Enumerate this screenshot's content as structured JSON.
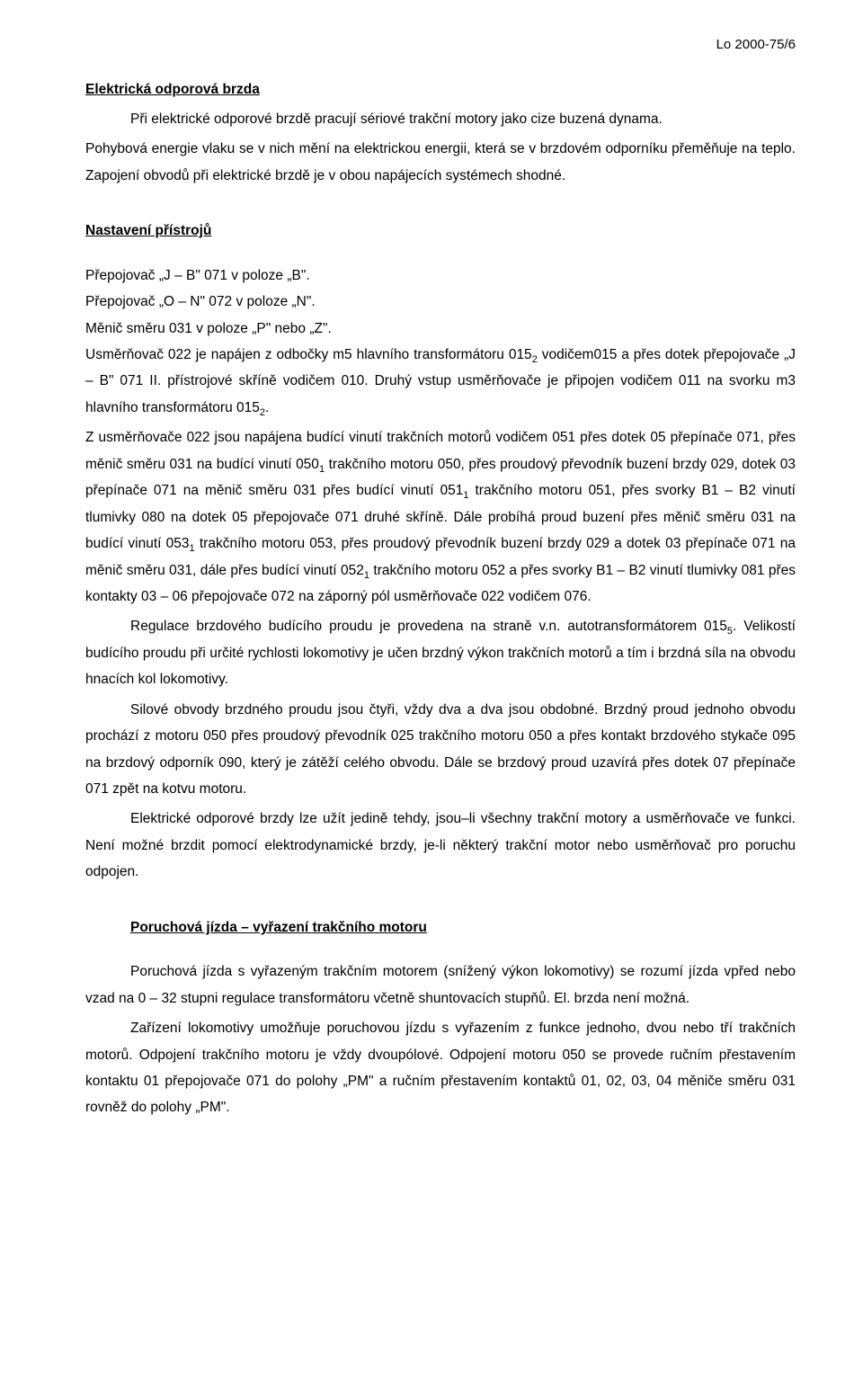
{
  "header": {
    "doc_ref": "Lo 2000-75/6"
  },
  "section1": {
    "title": "Elektrická odporová brzda",
    "p1": "Při elektrické odporové brzdě pracují sériové trakční motory jako cize buzená dynama.",
    "p2": "Pohybová energie vlaku se v nich mění na elektrickou energii, která se v brzdovém odporníku přeměňuje na teplo. Zapojení obvodů při elektrické brzdě je v obou napájecích systémech shodné."
  },
  "section2": {
    "title": "Nastavení přístrojů",
    "l1": "Přepojovač „J – B\" 071 v poloze „B\".",
    "l2": "Přepojovač „O – N\" 072 v poloze „N\".",
    "l3": "Měnič směru 031 v poloze „P\" nebo „Z\".",
    "p1a": "Usměrňovač 022 je napájen z odbočky m5 hlavního transformátoru 015",
    "p1sub1": "2",
    "p1b": " vodičem015 a přes dotek přepojovače „J – B\" 071 II. přístrojové skříně vodičem 010. Druhý vstup usměrňovače je připojen vodičem 011 na svorku m3 hlavního transformátoru 015",
    "p1sub2": "2",
    "p1c": ".",
    "p2a": "Z usměrňovače 022 jsou napájena budící vinutí trakčních motorů vodičem 051 přes dotek 05 přepínače 071, přes měnič směru 031 na budící vinutí 050",
    "p2sub1": "1",
    "p2b": " trakčního motoru 050, přes proudový převodník buzení brzdy 029, dotek 03 přepínače 071 na měnič směru 031 přes budící vinutí 051",
    "p2sub2": "1",
    "p2c": " trakčního motoru 051, přes svorky B1 – B2 vinutí tlumivky 080 na dotek 05 přepojovače 071 druhé skříně. Dále probíhá proud buzení přes měnič směru 031 na budící vinutí 053",
    "p2sub3": "1",
    "p2d": " trakčního motoru 053, přes proudový převodník buzení brzdy 029 a dotek 03 přepínače 071 na měnič směru 031, dále přes budící vinutí 052",
    "p2sub4": "1",
    "p2e": " trakčního motoru 052 a  přes  svorky B1 – B2  vinutí  tlumivky  081  přes  kontakty  03 – 06 přepojovače 072 na záporný pól usměrňovače 022 vodičem 076.",
    "p3a": "Regulace brzdového budícího proudu je provedena na straně v.n. autotransformátorem 015",
    "p3sub": "5",
    "p3b": ". Velikostí budícího proudu při určité rychlosti lokomotivy je učen brzdný výkon trakčních motorů a tím i brzdná  síla na obvodu hnacích kol lokomotivy.",
    "p4": "Silové obvody brzdného proudu jsou čtyři, vždy dva a dva jsou obdobné. Brzdný proud jednoho obvodu prochází  z motoru 050 přes proudový převodník 025 trakčního motoru 050 a přes kontakt brzdového stykače 095 na brzdový odporník 090, který je zátěží celého obvodu. Dále se brzdový proud uzavírá přes dotek 07 přepínače 071 zpět na kotvu motoru.",
    "p5": "Elektrické odporové brzdy lze užít jedině tehdy, jsou–li všechny trakční motory a usměrňovače ve funkci. Není možné brzdit pomocí elektrodynamické brzdy, je-li některý trakční motor nebo usměrňovač pro poruchu odpojen."
  },
  "section3": {
    "title": "Poruchová jízda – vyřazení trakčního motoru",
    "p1": "Poruchová jízda s vyřazeným trakčním motorem (snížený výkon lokomotivy) se rozumí jízda vpřed nebo vzad na 0 – 32 stupni regulace transformátoru včetně shuntovacích stupňů. El. brzda není možná.",
    "p2": "Zařízení lokomotivy umožňuje poruchovou jízdu s vyřazením z funkce jednoho, dvou nebo tří trakčních motorů. Odpojení trakčního motoru je vždy dvoupólové. Odpojení motoru 050 se provede ručním přestavením kontaktu 01 přepojovače 071 do polohy „PM\" a ručním přestavením kontaktů 01, 02, 03, 04 měniče směru 031 rovněž do polohy „PM\"."
  }
}
